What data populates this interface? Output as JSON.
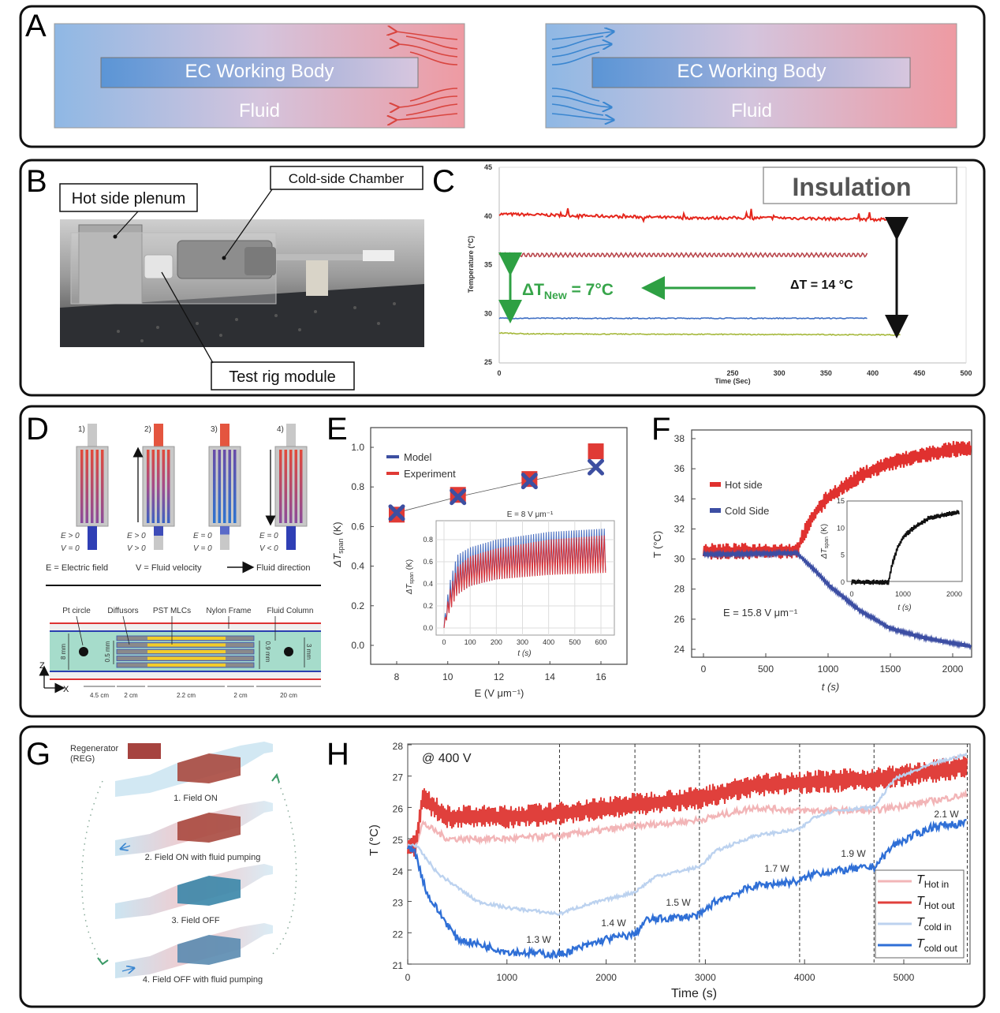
{
  "panel_labels": [
    "A",
    "B",
    "C",
    "D",
    "E",
    "F",
    "G",
    "H"
  ],
  "panel_a": {
    "left": {
      "body_label": "EC Working Body",
      "fluid_label": "Fluid"
    },
    "right": {
      "body_label": "EC Working Body",
      "fluid_label": "Fluid"
    },
    "colors": {
      "cold": "#6fa3dc",
      "hot": "#ec8f98",
      "hot_arrow": "#d9453f",
      "cold_arrow": "#3a86d0"
    }
  },
  "panel_b": {
    "callouts": {
      "hot_plenum": "Hot side plenum",
      "cold_chamber": "Cold-side Chamber",
      "test_rig": "Test rig module"
    }
  },
  "panel_c": {
    "chart_data": {
      "type": "line",
      "xlabel": "Time (Sec)",
      "ylabel": "Temperature (°C)",
      "xlim": [
        0,
        500
      ],
      "ylim": [
        25,
        45
      ],
      "x_ticks": [
        "0",
        "250",
        "300",
        "350",
        "400",
        "450",
        "500"
      ],
      "y_ticks": [
        "25",
        "30",
        "35",
        "40",
        "45"
      ],
      "series": [
        {
          "color": "#e5261c",
          "points": [
            [
              0,
              40.2
            ],
            [
              100,
              40.0
            ],
            [
              200,
              39.8
            ],
            [
              300,
              39.8
            ],
            [
              430,
              39.6
            ]
          ]
        },
        {
          "color": "#b8454a",
          "pattern": "periodic",
          "points": [
            [
              0,
              36.0
            ],
            [
              395,
              36.0
            ]
          ]
        },
        {
          "color": "#3f6fc4",
          "points": [
            [
              0,
              29.5
            ],
            [
              395,
              29.5
            ]
          ]
        },
        {
          "color": "#a5b83a",
          "points": [
            [
              0,
              28.0
            ],
            [
              30,
              27.9
            ],
            [
              430,
              27.8
            ]
          ]
        }
      ],
      "annotations": {
        "box_label": "Insulation",
        "delta_new_prefix": "ΔT",
        "delta_new_sub": "New",
        "delta_new_value": " = 7°C",
        "delta_total": "ΔT = 14 °C"
      },
      "grid": false
    }
  },
  "panel_d": {
    "steps": [
      {
        "num": "1)",
        "e": "E > 0",
        "v": "V = 0"
      },
      {
        "num": "2)",
        "e": "E > 0",
        "v": "V > 0"
      },
      {
        "num": "3)",
        "e": "E = 0",
        "v": "V = 0"
      },
      {
        "num": "4)",
        "e": "E = 0",
        "v": "V < 0"
      }
    ],
    "legend": {
      "e": "E = Electric field",
      "v": "V = Fluid velocity",
      "dir": "Fluid direction"
    },
    "schematic_labels": {
      "pt": "Pt circle",
      "diff": "Diffusors",
      "pst": "PST MLCs",
      "nylon": "Nylon Frame",
      "fluid": "Fluid Column"
    },
    "dims": {
      "h8": "8 mm",
      "h05": "0.5 mm",
      "h09": "0.9 mm",
      "h3": "3 mm",
      "w1": "4.5 cm",
      "w2": "2 cm",
      "w3": "2.2 cm",
      "w4": "2 cm",
      "w5": "20 cm"
    },
    "axes": {
      "z": "Z",
      "x": "X"
    }
  },
  "panel_e": {
    "chart_data": [
      {
        "type": "scatter",
        "xlabel": "E (V μm⁻¹)",
        "ylabel": "ΔT",
        "ylabel_sub": "span",
        "ylabel_unit": " (K)",
        "xlim": [
          7.3,
          16.9
        ],
        "ylim": [
          -0.1,
          1.1
        ],
        "x_ticks": [
          "8",
          "10",
          "12",
          "14",
          "16"
        ],
        "y_ticks": [
          "0.0",
          "0.2",
          "0.4",
          "0.6",
          "0.8",
          "1.0"
        ],
        "series": [
          {
            "name": "Model",
            "color": "#3d4fa1",
            "marker": "x",
            "x": [
              8,
              10.4,
              13.2,
              15.8
            ],
            "y": [
              0.67,
              0.75,
              0.83,
              0.9
            ]
          },
          {
            "name": "Experiment",
            "color": "#e03a35",
            "marker": "square",
            "x": [
              8,
              10.4,
              13.2,
              15.8
            ],
            "y": [
              0.66,
              0.76,
              0.84,
              0.98
            ]
          }
        ]
      },
      {
        "type": "line",
        "title": "E = 8 V μm⁻¹",
        "xlabel": "t (s)",
        "ylabel": "ΔT",
        "ylabel_sub": "span",
        "ylabel_unit": " (K)",
        "xlim": [
          -40,
          650
        ],
        "ylim": [
          -0.07,
          0.9
        ],
        "x_ticks": [
          "0",
          "100",
          "200",
          "300",
          "400",
          "500",
          "600"
        ],
        "y_ticks": [
          "0.0",
          "0.2",
          "0.4",
          "0.6",
          "0.8"
        ],
        "grid": true,
        "series": [
          {
            "color": "#4a6fc0",
            "upper": [
              [
                0,
                0.05
              ],
              [
                20,
                0.4
              ],
              [
                50,
                0.66
              ],
              [
                100,
                0.73
              ],
              [
                200,
                0.8
              ],
              [
                400,
                0.87
              ],
              [
                620,
                0.9
              ]
            ],
            "lower": [
              [
                0,
                0.0
              ],
              [
                20,
                0.15
              ],
              [
                50,
                0.3
              ],
              [
                100,
                0.38
              ],
              [
                200,
                0.44
              ],
              [
                400,
                0.49
              ],
              [
                620,
                0.52
              ]
            ]
          },
          {
            "color": "#d8343a",
            "upper": [
              [
                0,
                0.03
              ],
              [
                20,
                0.32
              ],
              [
                50,
                0.55
              ],
              [
                100,
                0.65
              ],
              [
                200,
                0.72
              ],
              [
                400,
                0.8
              ],
              [
                620,
                0.84
              ]
            ],
            "lower": [
              [
                0,
                0.0
              ],
              [
                20,
                0.14
              ],
              [
                50,
                0.3
              ],
              [
                100,
                0.38
              ],
              [
                200,
                0.44
              ],
              [
                400,
                0.48
              ],
              [
                620,
                0.5
              ]
            ]
          }
        ]
      }
    ]
  },
  "panel_f": {
    "chart_data": [
      {
        "type": "line",
        "xlabel": "t (s)",
        "ylabel": "T (°C)",
        "xlim": [
          -100,
          2150
        ],
        "ylim": [
          23.5,
          38.4
        ],
        "x_ticks": [
          "0",
          "500",
          "1000",
          "1500",
          "2000"
        ],
        "y_ticks": [
          "24",
          "26",
          "28",
          "30",
          "32",
          "34",
          "36",
          "38"
        ],
        "annotation": "E = 15.8 V μm⁻¹",
        "series": [
          {
            "name": "Hot side",
            "color": "#e0312f",
            "points": [
              [
                0,
                30.5
              ],
              [
                750,
                30.55
              ],
              [
                800,
                31.6
              ],
              [
                900,
                33.1
              ],
              [
                1000,
                34.1
              ],
              [
                1250,
                35.5
              ],
              [
                1500,
                36.4
              ],
              [
                1750,
                36.9
              ],
              [
                2000,
                37.3
              ],
              [
                2150,
                37.3
              ]
            ],
            "band": 0.55
          },
          {
            "name": "Cold Side",
            "color": "#3c4ea3",
            "points": [
              [
                0,
                30.3
              ],
              [
                750,
                30.4
              ],
              [
                900,
                29.2
              ],
              [
                1000,
                28.3
              ],
              [
                1250,
                26.6
              ],
              [
                1500,
                25.4
              ],
              [
                1750,
                24.8
              ],
              [
                2000,
                24.4
              ],
              [
                2150,
                24.2
              ]
            ],
            "band": 0.12
          }
        ]
      },
      {
        "type": "line",
        "xlabel": "t (s)",
        "ylabel": "ΔT",
        "ylabel_sub": "span",
        "ylabel_unit": " (K)",
        "xlim": [
          -100,
          2150
        ],
        "ylim": [
          -1,
          15
        ],
        "x_ticks": [
          "0",
          "1000",
          "2000"
        ],
        "y_ticks": [
          "0",
          "5",
          "10",
          "15"
        ],
        "series": [
          {
            "color": "#111111",
            "points": [
              [
                0,
                0
              ],
              [
                720,
                0
              ],
              [
                780,
                3
              ],
              [
                900,
                6.5
              ],
              [
                1000,
                8.3
              ],
              [
                1200,
                10
              ],
              [
                1500,
                11.8
              ],
              [
                2000,
                12.8
              ],
              [
                2100,
                13
              ]
            ],
            "band": 0.5
          }
        ]
      }
    ]
  },
  "panel_g": {
    "regenerator": [
      "Regenerator",
      "(REG)"
    ],
    "steps": [
      "1. Field ON",
      "2. Field ON with fluid pumping",
      "3. Field OFF",
      "4. Field OFF with fluid pumping"
    ]
  },
  "panel_h": {
    "chart_data": {
      "type": "line",
      "xlabel": "Time (s)",
      "ylabel": "T (°C)",
      "xlim": [
        0,
        5660
      ],
      "ylim": [
        21,
        28
      ],
      "x_ticks": [
        "0",
        "1000",
        "2000",
        "3000",
        "4000",
        "5000"
      ],
      "y_ticks": [
        "21",
        "22",
        "23",
        "24",
        "25",
        "26",
        "27",
        "28"
      ],
      "condition": "@ 400 V",
      "step_times": [
        1530,
        2290,
        2940,
        3950,
        4700,
        5640
      ],
      "power_labels": [
        "1.3 W",
        "1.4 W",
        "1.5 W",
        "1.7 W",
        "1.9 W",
        "2.1 W"
      ],
      "series": [
        {
          "name": "T",
          "sub": "Hot in",
          "color": "#f2b5b7",
          "points": [
            [
              0,
              24.8
            ],
            [
              80,
              24.8
            ],
            [
              150,
              25.5
            ],
            [
              400,
              25.0
            ],
            [
              1000,
              25.0
            ],
            [
              1530,
              25.1
            ],
            [
              2290,
              25.4
            ],
            [
              2940,
              25.6
            ],
            [
              3500,
              26.0
            ],
            [
              3950,
              25.9
            ],
            [
              4700,
              25.9
            ],
            [
              5640,
              26.4
            ]
          ],
          "band": 0.1
        },
        {
          "name": "T",
          "sub": "Hot out",
          "color": "#e0403c",
          "points": [
            [
              0,
              24.8
            ],
            [
              80,
              24.8
            ],
            [
              150,
              26.3
            ],
            [
              400,
              25.7
            ],
            [
              1000,
              25.7
            ],
            [
              1530,
              25.8
            ],
            [
              2290,
              26.1
            ],
            [
              2940,
              26.3
            ],
            [
              3500,
              26.7
            ],
            [
              3950,
              26.8
            ],
            [
              4700,
              26.9
            ],
            [
              5640,
              27.3
            ]
          ],
          "band": 0.38
        },
        {
          "name": "T",
          "sub": "cold in",
          "color": "#bcd2ef",
          "points": [
            [
              0,
              24.8
            ],
            [
              80,
              24.8
            ],
            [
              300,
              23.9
            ],
            [
              700,
              23.0
            ],
            [
              1000,
              22.8
            ],
            [
              1530,
              22.6
            ],
            [
              1700,
              22.8
            ],
            [
              2290,
              23.3
            ],
            [
              2500,
              23.8
            ],
            [
              2940,
              24.1
            ],
            [
              3100,
              24.6
            ],
            [
              3500,
              25.1
            ],
            [
              3950,
              25.3
            ],
            [
              4100,
              25.7
            ],
            [
              4300,
              25.9
            ],
            [
              4700,
              26.0
            ],
            [
              4900,
              26.9
            ],
            [
              5300,
              27.4
            ],
            [
              5640,
              27.7
            ]
          ],
          "band": 0.05
        },
        {
          "name": "T",
          "sub": "cold out",
          "color": "#2f6fd6",
          "points": [
            [
              0,
              24.7
            ],
            [
              60,
              24.7
            ],
            [
              200,
              23.2
            ],
            [
              500,
              21.8
            ],
            [
              1000,
              21.4
            ],
            [
              1530,
              21.3
            ],
            [
              2000,
              21.8
            ],
            [
              2290,
              21.95
            ],
            [
              2400,
              22.4
            ],
            [
              2940,
              22.55
            ],
            [
              3100,
              23.0
            ],
            [
              3500,
              23.5
            ],
            [
              3950,
              23.65
            ],
            [
              4100,
              23.9
            ],
            [
              4700,
              24.1
            ],
            [
              4900,
              24.8
            ],
            [
              5300,
              25.4
            ],
            [
              5640,
              25.5
            ]
          ],
          "band": 0.12
        }
      ]
    }
  }
}
